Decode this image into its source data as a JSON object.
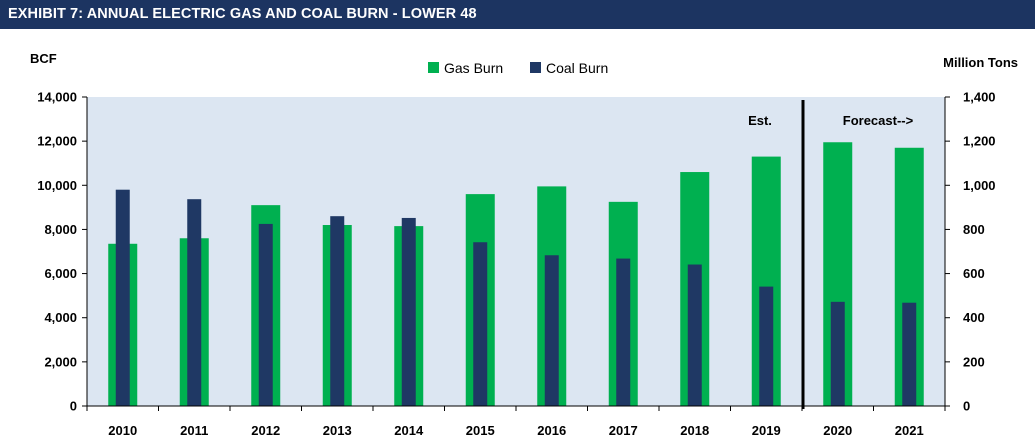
{
  "header": {
    "title": "EXHIBIT 7: ANNUAL ELECTRIC GAS AND COAL BURN - LOWER 48"
  },
  "colors": {
    "gas": "#00b050",
    "coal": "#1f3864",
    "plot_bg": "#dce6f2",
    "header_bg": "#1c3461"
  },
  "chart_data": {
    "type": "bar",
    "title": "EXHIBIT 7: ANNUAL ELECTRIC GAS AND COAL BURN - LOWER 48",
    "categories": [
      "2010",
      "2011",
      "2012",
      "2013",
      "2014",
      "2015",
      "2016",
      "2017",
      "2018",
      "2019",
      "2020",
      "2021"
    ],
    "series": [
      {
        "name": "Gas Burn",
        "axis": "left",
        "values": [
          7350,
          7600,
          9100,
          8200,
          8150,
          9600,
          9950,
          9250,
          10600,
          11300,
          11950,
          11700
        ]
      },
      {
        "name": "Coal Burn",
        "axis": "right",
        "values": [
          980,
          937,
          825,
          860,
          852,
          742,
          683,
          668,
          641,
          541,
          472,
          468
        ]
      }
    ],
    "ylabel": "BCF",
    "ylabel_right": "Million Tons",
    "ylim": [
      0,
      14000
    ],
    "ylim_right": [
      0,
      1400
    ],
    "yticks": [
      "0",
      "2,000",
      "4,000",
      "6,000",
      "8,000",
      "10,000",
      "12,000",
      "14,000"
    ],
    "yticks_right": [
      "0",
      "200",
      "400",
      "600",
      "800",
      "1,000",
      "1,200",
      "1,400"
    ],
    "annotations": {
      "estimate": "Est.",
      "forecast": "Forecast-->"
    },
    "grid": false,
    "legend": "top-center"
  }
}
